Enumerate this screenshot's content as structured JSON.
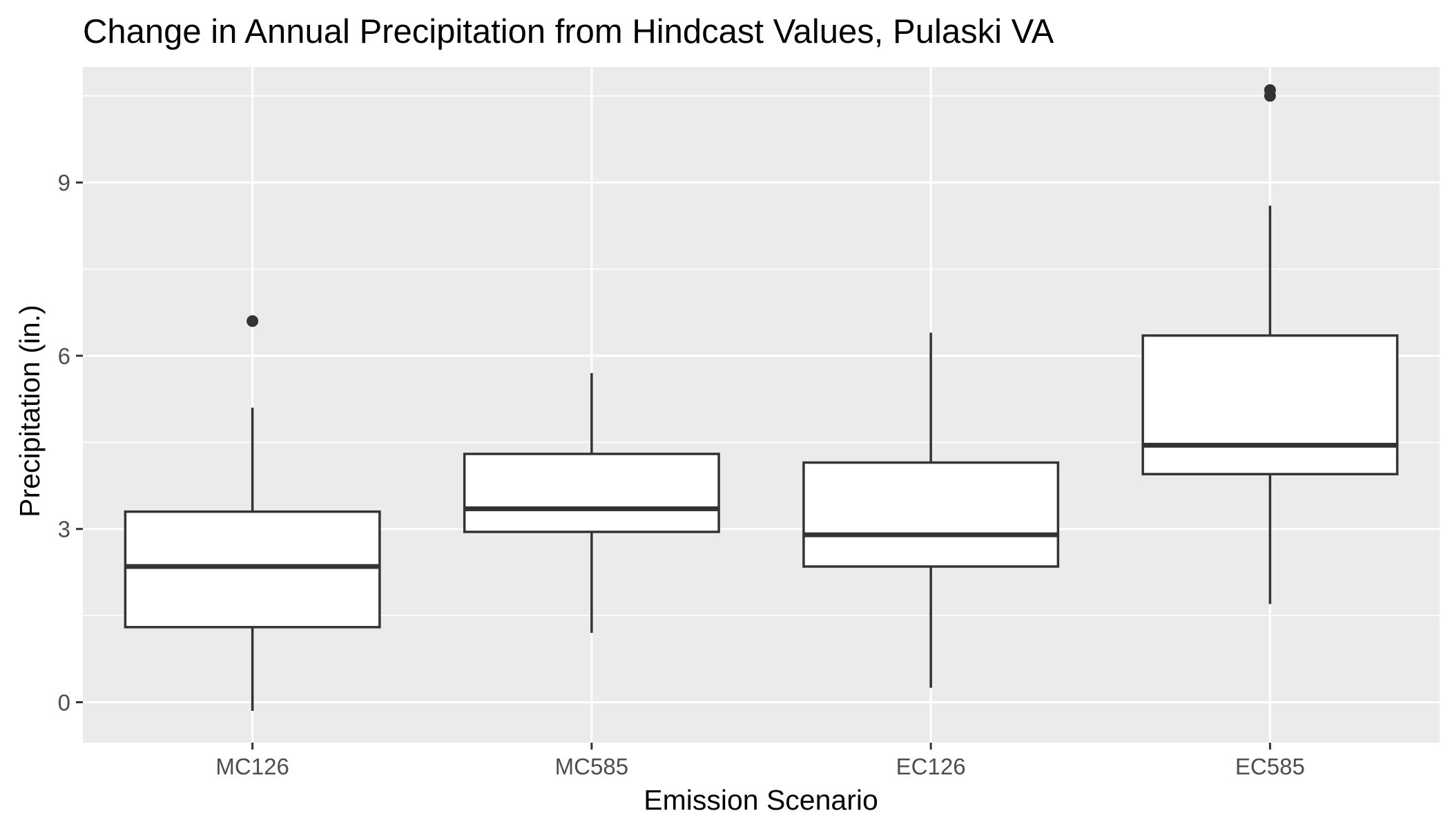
{
  "chart_data": {
    "type": "boxplot",
    "title": "Change in Annual Precipitation from Hindcast Values, Pulaski VA",
    "xlabel": "Emission Scenario",
    "ylabel": "Precipitation (in.)",
    "categories": [
      "MC126",
      "MC585",
      "EC126",
      "EC585"
    ],
    "ylim": [
      -0.7,
      11.0
    ],
    "yticks": [
      0,
      3,
      6,
      9
    ],
    "grid": true,
    "boxes": [
      {
        "category": "MC126",
        "whisker_low": -0.15,
        "q1": 1.3,
        "median": 2.35,
        "q3": 3.3,
        "whisker_high": 5.1,
        "outliers": [
          6.6
        ]
      },
      {
        "category": "MC585",
        "whisker_low": 1.2,
        "q1": 2.95,
        "median": 3.35,
        "q3": 4.3,
        "whisker_high": 5.7,
        "outliers": []
      },
      {
        "category": "EC126",
        "whisker_low": 0.25,
        "q1": 2.35,
        "median": 2.9,
        "q3": 4.15,
        "whisker_high": 6.4,
        "outliers": []
      },
      {
        "category": "EC585",
        "whisker_low": 1.7,
        "q1": 3.95,
        "median": 4.45,
        "q3": 6.35,
        "whisker_high": 8.6,
        "outliers": [
          10.5,
          10.6
        ]
      }
    ],
    "colors": {
      "panel_background": "#ebebeb",
      "grid_line": "#ffffff",
      "box_fill": "#ffffff",
      "box_stroke": "#333333",
      "tick_label": "#4d4d4d",
      "text": "#000000"
    }
  }
}
